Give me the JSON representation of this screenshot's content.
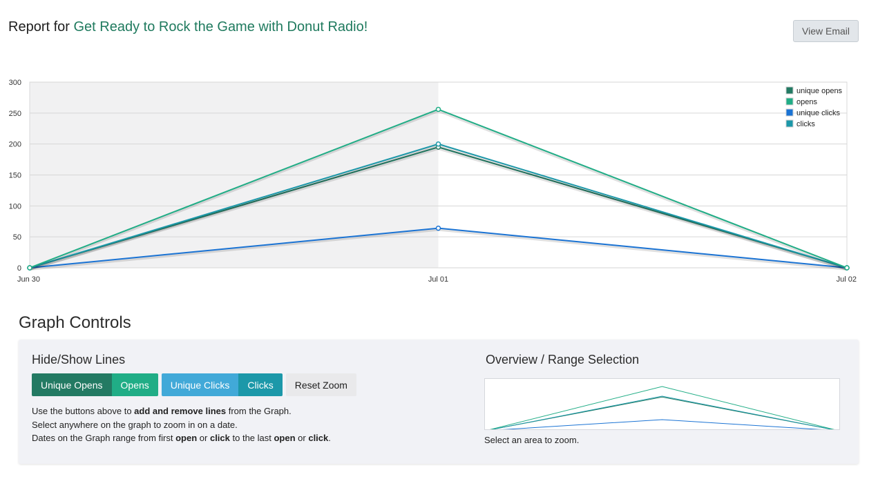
{
  "header": {
    "report_prefix": "Report for",
    "campaign_name": "Get Ready to Rock the Game with Donut Radio!",
    "view_email_label": "View Email"
  },
  "chart_data": {
    "type": "line",
    "title": "",
    "xlabel": "",
    "ylabel": "",
    "categories": [
      "Jun 30",
      "Jul 01",
      "Jul 02"
    ],
    "ylim": [
      0,
      300
    ],
    "yticks": [
      "300",
      "250",
      "200",
      "150",
      "100",
      "50",
      "0"
    ],
    "ytick_values": [
      300,
      250,
      200,
      150,
      100,
      50,
      0
    ],
    "highlight_range": [
      "Jun 30",
      "Jul 01"
    ],
    "legend_position": "top-right",
    "series": [
      {
        "name": "unique opens",
        "color": "#237a63",
        "values": [
          0,
          195,
          0
        ]
      },
      {
        "name": "opens",
        "color": "#20ad86",
        "values": [
          0,
          256,
          0
        ]
      },
      {
        "name": "unique clicks",
        "color": "#1a73d4",
        "values": [
          0,
          64,
          0
        ]
      },
      {
        "name": "clicks",
        "color": "#1c98a9",
        "values": [
          0,
          200,
          0
        ]
      }
    ]
  },
  "controls": {
    "heading": "Graph Controls",
    "hide_show_heading": "Hide/Show Lines",
    "buttons": {
      "unique_opens": "Unique Opens",
      "opens": "Opens",
      "unique_clicks": "Unique Clicks",
      "clicks": "Clicks",
      "reset_zoom": "Reset Zoom"
    },
    "help": {
      "line1_a": "Use the buttons above to ",
      "line1_b": "add and remove lines",
      "line1_c": " from the Graph.",
      "line2": "Select anywhere on the graph to zoom in on a date.",
      "line3_a": "Dates on the Graph range from first ",
      "line3_b": "open",
      "line3_c": " or ",
      "line3_d": "click",
      "line3_e": " to the last ",
      "line3_f": "open",
      "line3_g": " or ",
      "line3_h": "click",
      "line3_i": "."
    },
    "overview_heading": "Overview / Range Selection",
    "zoom_note": "Select an area to zoom."
  }
}
